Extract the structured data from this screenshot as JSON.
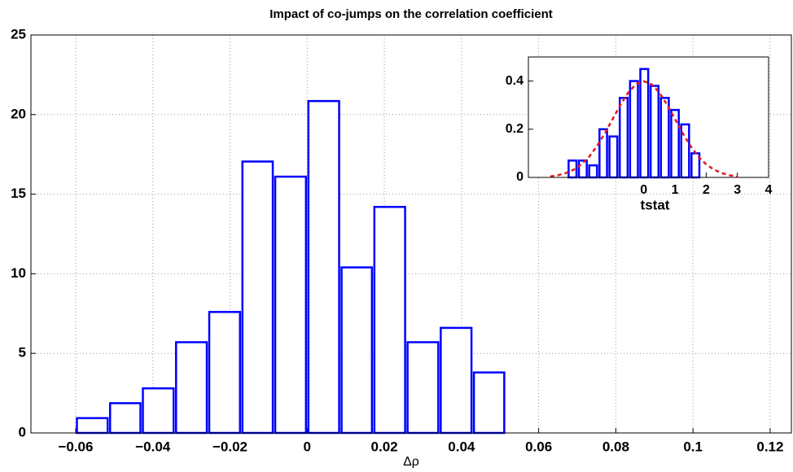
{
  "chart_data": [
    {
      "type": "histogram",
      "title": "Impact of co-jumps on the correlation coefficient",
      "xlabel": "Δρ",
      "bins": [
        -0.06,
        -0.0514,
        -0.0429,
        -0.0343,
        -0.0257,
        -0.0171,
        -0.0086,
        0,
        0.0086,
        0.0171,
        0.0257,
        0.0343,
        0.0429,
        0.0514
      ],
      "values": [
        0.93,
        1.87,
        2.8,
        5.7,
        7.6,
        17.05,
        16.1,
        20.85,
        10.4,
        14.2,
        5.7,
        6.6,
        3.8
      ],
      "color": "#0000ff",
      "fill": "#ffffff",
      "xlim": [
        -0.0716,
        0.1255
      ],
      "ylim": [
        0,
        25
      ],
      "xticks": [
        {
          "value": -0.06,
          "label": "−0.06"
        },
        {
          "value": -0.04,
          "label": "−0.04"
        },
        {
          "value": -0.02,
          "label": "−0.02"
        },
        0,
        0.02,
        0.04,
        0.06,
        0.08,
        0.1,
        0.12
      ],
      "yticks": [
        0,
        5,
        10,
        15,
        20,
        25
      ],
      "grid": true
    },
    {
      "type": "histogram",
      "xlabel": "tstat",
      "bins": [
        -2.45,
        -2.12,
        -1.79,
        -1.46,
        -1.14,
        -0.81,
        -0.48,
        -0.15,
        0.18,
        0.51,
        0.84,
        1.16,
        1.49,
        1.82
      ],
      "values": [
        0.07,
        0.07,
        0.05,
        0.2,
        0.17,
        0.33,
        0.4,
        0.45,
        0.38,
        0.33,
        0.28,
        0.22,
        0.1
      ],
      "color": "#0000ff",
      "fill": "#ffffff",
      "xlim": [
        -3.7,
        4
      ],
      "ylim": [
        0,
        0.5
      ],
      "xticks": [
        0,
        1,
        2,
        3,
        4
      ],
      "yticks": [
        0,
        0.2,
        0.4
      ],
      "grid": false,
      "overlay": {
        "type": "line",
        "color": "#e31a1c",
        "dashed": true,
        "x": [
          -3,
          -2.75,
          -2.5,
          -2.25,
          -2,
          -1.75,
          -1.5,
          -1.25,
          -1,
          -0.75,
          -0.5,
          -0.25,
          0,
          0.25,
          0.5,
          0.75,
          1,
          1.25,
          1.5,
          1.75,
          2,
          2.25,
          2.5,
          2.75,
          3
        ],
        "y": [
          0.004,
          0.009,
          0.018,
          0.032,
          0.054,
          0.086,
          0.13,
          0.183,
          0.242,
          0.301,
          0.352,
          0.387,
          0.399,
          0.387,
          0.352,
          0.301,
          0.242,
          0.183,
          0.13,
          0.086,
          0.054,
          0.032,
          0.018,
          0.009,
          0.004
        ]
      }
    }
  ]
}
